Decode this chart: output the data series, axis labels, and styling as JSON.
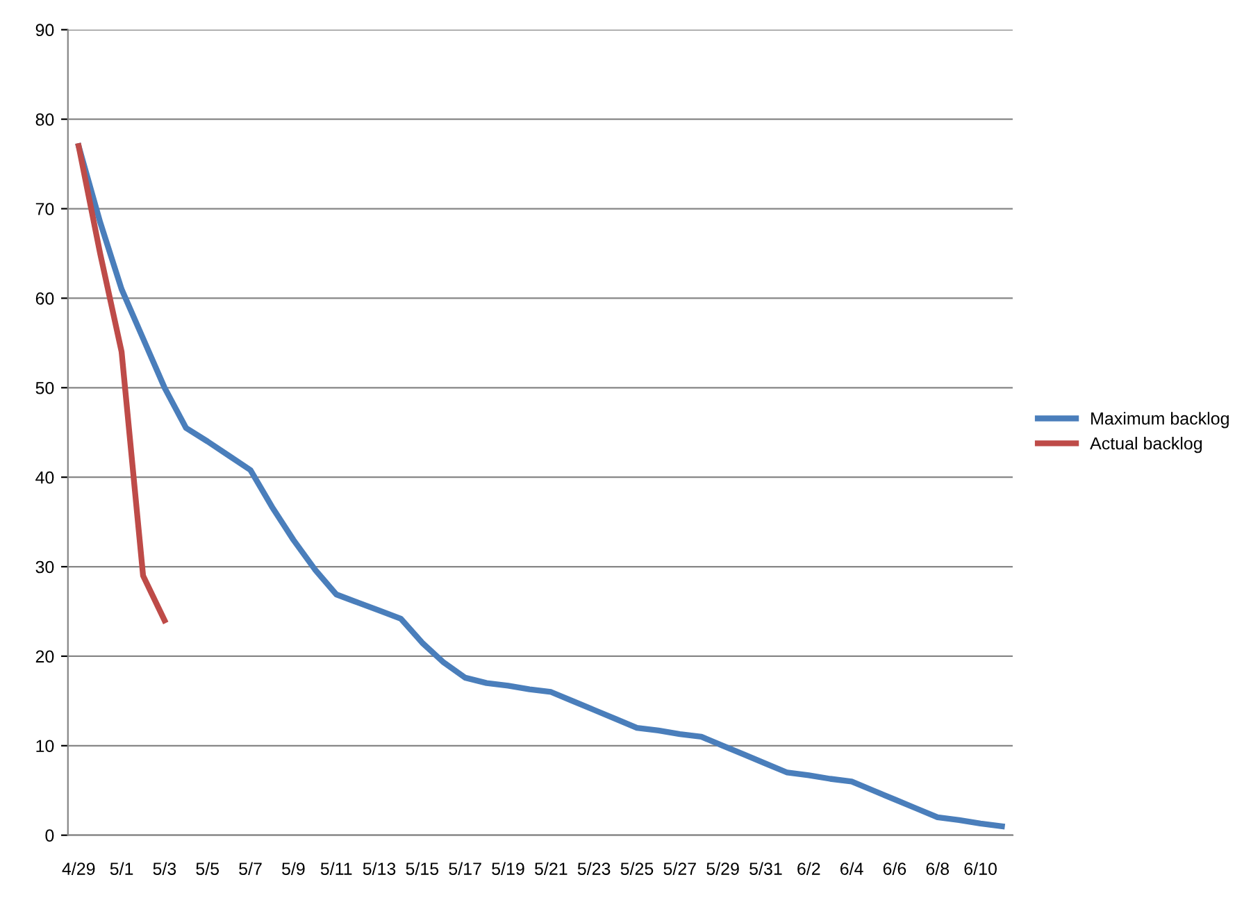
{
  "chart_data": {
    "type": "line",
    "categories": [
      "4/29",
      null,
      "5/1",
      null,
      "5/3",
      null,
      "5/5",
      null,
      "5/7",
      null,
      "5/9",
      null,
      "5/11",
      null,
      "5/13",
      null,
      "5/15",
      null,
      "5/17",
      null,
      "5/19",
      null,
      "5/21",
      null,
      "5/23",
      null,
      "5/25",
      null,
      "5/27",
      null,
      "5/29",
      null,
      "5/31",
      null,
      "6/2",
      null,
      "6/4",
      null,
      "6/6",
      null,
      "6/8",
      null,
      "6/10",
      null
    ],
    "series": [
      {
        "name": "Maximum backlog",
        "color": "#4a7ebb",
        "values": [
          77,
          68.5,
          61,
          55.5,
          50,
          45.5,
          44,
          42.4,
          40.8,
          36.7,
          33,
          29.7,
          26.9,
          26,
          25.1,
          24.2,
          21.5,
          19.3,
          17.6,
          17,
          16.7,
          16.3,
          16,
          15,
          14,
          13,
          12,
          11.7,
          11.3,
          11,
          10,
          9,
          8,
          7,
          6.7,
          6.3,
          6,
          5,
          4,
          3,
          2,
          1.7,
          1.3,
          1
        ]
      },
      {
        "name": "Actual backlog",
        "color": "#be4b48",
        "values": [
          77,
          65,
          54,
          29,
          24,
          null,
          null,
          null,
          null,
          null,
          null,
          null,
          null,
          null,
          null,
          null,
          null,
          null,
          null,
          null,
          null,
          null,
          null,
          null,
          null,
          null,
          null,
          null,
          null,
          null,
          null,
          null,
          null,
          null,
          null,
          null,
          null,
          null,
          null,
          null,
          null,
          null,
          null,
          null
        ]
      }
    ],
    "ylim": [
      0,
      90
    ],
    "yticks": [
      0,
      10,
      20,
      30,
      40,
      50,
      60,
      70,
      80,
      90
    ],
    "grid": "y",
    "legend": "right",
    "marker": "none",
    "line_style": "solid"
  }
}
